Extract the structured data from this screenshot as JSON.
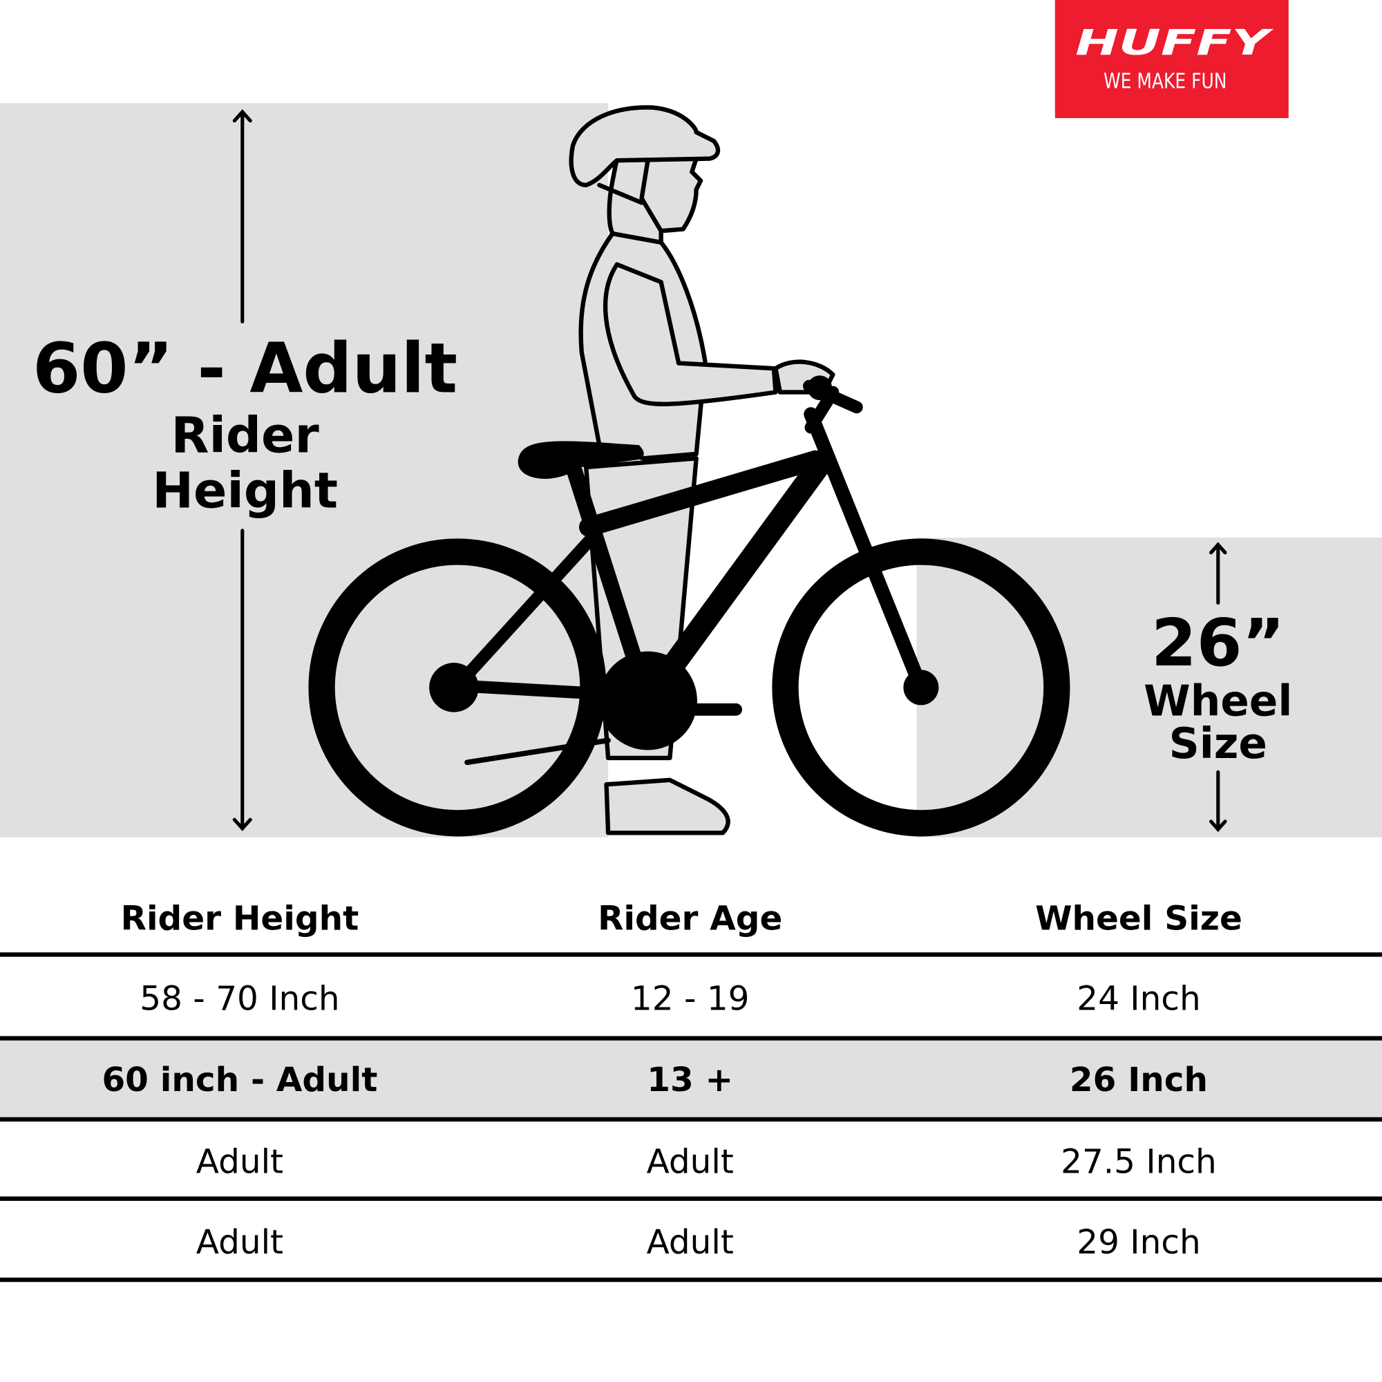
{
  "brand": {
    "logo_text": "HUFFY",
    "tagline": "WE MAKE FUN",
    "color": "#ed1c2e"
  },
  "illustration": {
    "rider_height_value": "60” - Adult",
    "rider_height_label_1": "Rider",
    "rider_height_label_2": "Height",
    "wheel_size_value": "26”",
    "wheel_size_label_1": "Wheel",
    "wheel_size_label_2": "Size",
    "background_color": "#e0e0e0"
  },
  "table": {
    "headers": [
      "Rider Height",
      "Rider Age",
      "Wheel Size"
    ],
    "rows": [
      [
        "58 - 70 Inch",
        "12 - 19",
        "24 Inch"
      ],
      [
        "60 inch - Adult",
        "13 +",
        "26 Inch"
      ],
      [
        "Adult",
        "Adult",
        "27.5 Inch"
      ],
      [
        "Adult",
        "Adult",
        "29 Inch"
      ]
    ],
    "highlighted_row": 1
  }
}
